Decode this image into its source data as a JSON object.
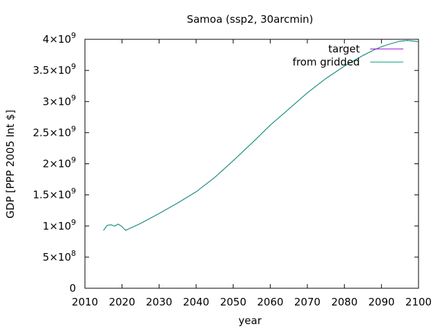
{
  "chart_data": {
    "type": "line",
    "title": "Samoa (ssp2, 30arcmin)",
    "xlabel": "year",
    "ylabel": "GDP [PPP 2005 Int $]",
    "xlim": [
      2010,
      2100
    ],
    "ylim": [
      0,
      4000000000
    ],
    "x_ticks": [
      2010,
      2020,
      2030,
      2040,
      2050,
      2060,
      2070,
      2080,
      2090,
      2100
    ],
    "y_ticks": [
      {
        "value": 0,
        "mantissa": "0",
        "exponent": ""
      },
      {
        "value": 500000000,
        "mantissa": "5×10",
        "exponent": "8"
      },
      {
        "value": 1000000000,
        "mantissa": "1×10",
        "exponent": "9"
      },
      {
        "value": 1500000000,
        "mantissa": "1.5×10",
        "exponent": "9"
      },
      {
        "value": 2000000000,
        "mantissa": "2×10",
        "exponent": "9"
      },
      {
        "value": 2500000000,
        "mantissa": "2.5×10",
        "exponent": "9"
      },
      {
        "value": 3000000000,
        "mantissa": "3×10",
        "exponent": "9"
      },
      {
        "value": 3500000000,
        "mantissa": "3.5×10",
        "exponent": "9"
      },
      {
        "value": 4000000000,
        "mantissa": "4×10",
        "exponent": "9"
      }
    ],
    "grid": false,
    "legend_position": "top-right",
    "series": [
      {
        "name": "target",
        "color": "#9400d3",
        "x": [
          2015,
          2016,
          2017,
          2018,
          2019,
          2020,
          2021,
          2022,
          2025,
          2030,
          2035,
          2040,
          2045,
          2050,
          2055,
          2060,
          2065,
          2070,
          2075,
          2080,
          2085,
          2088,
          2090,
          2092,
          2095,
          2097,
          2099,
          2100
        ],
        "values": [
          930000000,
          1010000000,
          1020000000,
          1000000000,
          1030000000,
          990000000,
          930000000,
          960000000,
          1040000000,
          1200000000,
          1370000000,
          1550000000,
          1780000000,
          2050000000,
          2330000000,
          2620000000,
          2880000000,
          3140000000,
          3370000000,
          3570000000,
          3740000000,
          3830000000,
          3880000000,
          3920000000,
          3970000000,
          3980000000,
          3970000000,
          3960000000
        ]
      },
      {
        "name": "from gridded",
        "color": "#009e73",
        "x": [
          2015,
          2016,
          2017,
          2018,
          2019,
          2020,
          2021,
          2022,
          2025,
          2030,
          2035,
          2040,
          2045,
          2050,
          2055,
          2060,
          2065,
          2070,
          2075,
          2080,
          2085,
          2088,
          2090,
          2092,
          2095,
          2097,
          2099,
          2100
        ],
        "values": [
          930000000,
          1010000000,
          1020000000,
          1000000000,
          1030000000,
          990000000,
          930000000,
          960000000,
          1040000000,
          1200000000,
          1370000000,
          1550000000,
          1780000000,
          2050000000,
          2330000000,
          2620000000,
          2880000000,
          3140000000,
          3370000000,
          3570000000,
          3740000000,
          3830000000,
          3880000000,
          3920000000,
          3970000000,
          3980000000,
          3970000000,
          3960000000
        ]
      }
    ]
  }
}
